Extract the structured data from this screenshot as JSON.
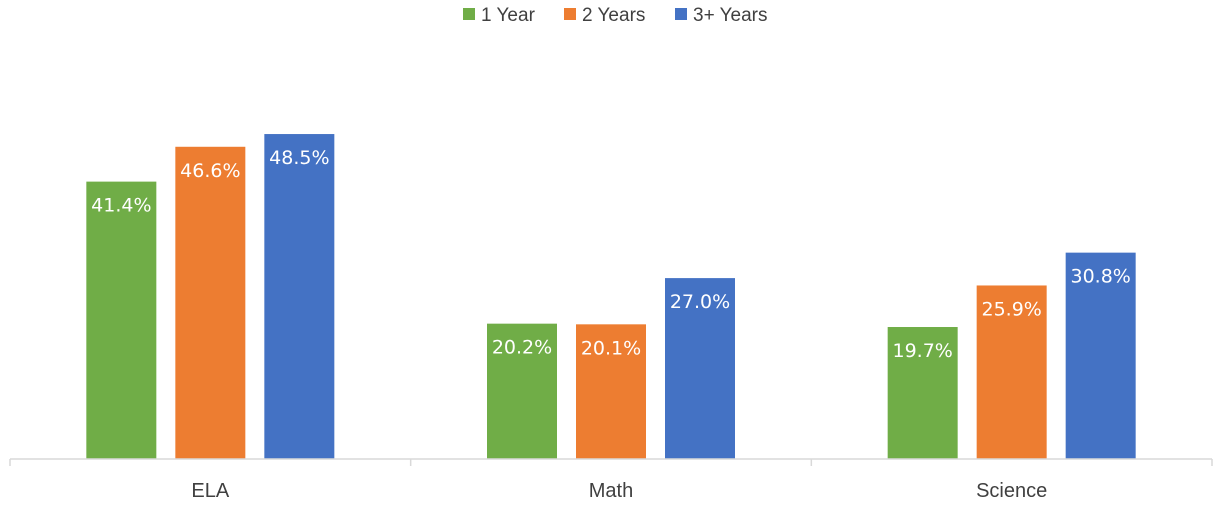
{
  "chart_data": {
    "type": "bar",
    "categories": [
      "ELA",
      "Math",
      "Science"
    ],
    "series": [
      {
        "name": "1 Year",
        "color": "#70ad47",
        "values": [
          41.4,
          20.2,
          19.7
        ],
        "labels": [
          "41.4%",
          "20.2%",
          "19.7%"
        ]
      },
      {
        "name": "2 Years",
        "color": "#ed7d31",
        "values": [
          46.6,
          20.1,
          25.9
        ],
        "labels": [
          "46.6%",
          "20.1%",
          "25.9%"
        ]
      },
      {
        "name": "3+ Years",
        "color": "#4472c4",
        "values": [
          48.5,
          27.0,
          30.8
        ],
        "labels": [
          "48.5%",
          "27.0%",
          "30.8%"
        ]
      }
    ],
    "ylim": [
      0,
      50
    ],
    "legend_position": "top",
    "grid": false,
    "title": "",
    "xlabel": "",
    "ylabel": ""
  }
}
